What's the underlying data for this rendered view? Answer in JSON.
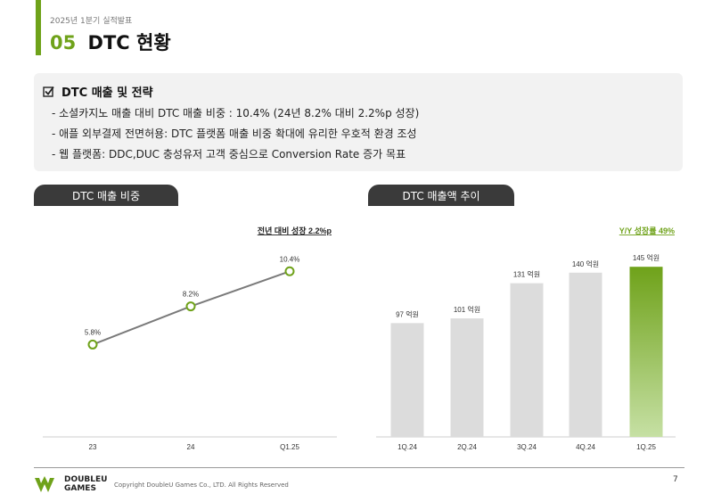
{
  "header": {
    "subtitle": "2025년 1분기 실적발표",
    "number": "05",
    "title": "DTC 현황"
  },
  "strategy": {
    "heading": "DTC 매출 및 전략",
    "bullets": [
      "- 소셜카지노 매출 대비 DTC 매출 비중 : 10.4% (24년 8.2% 대비 2.2%p 성장)",
      "- 애플 외부결제 전면허용: DTC 플랫폼 매출 비중 확대에 유리한 우호적 환경 조성",
      "- 웹 플랫폼: DDC,DUC 충성유저 고객 중심으로 Conversion Rate 증가 목표"
    ]
  },
  "chart_data": [
    {
      "type": "line",
      "title": "DTC 매출 비중",
      "annotation": "전년 대비 성장 2.2%p",
      "categories": [
        "23",
        "24",
        "Q1.25"
      ],
      "values": [
        5.8,
        8.2,
        10.4
      ],
      "data_labels": [
        "5.8%",
        "8.2%",
        "10.4%"
      ],
      "ylim": [
        0,
        14
      ],
      "grid": false,
      "colors": {
        "line": "#7a7a7a",
        "marker": "#6fa21a"
      }
    },
    {
      "type": "bar",
      "title": "DTC 매출액 추이",
      "annotation": "Y/Y 성장률 49%",
      "categories": [
        "1Q.24",
        "2Q.24",
        "3Q.24",
        "4Q.24",
        "1Q.25"
      ],
      "values": [
        97,
        101,
        131,
        140,
        145
      ],
      "data_labels": [
        "97 억원",
        "101 억원",
        "131 억원",
        "140 억원",
        "145 억원"
      ],
      "ylim": [
        0,
        190
      ],
      "grid": false,
      "colors": {
        "bar": "#dcdcdc",
        "highlight_top": "#6fa21a",
        "highlight_bottom": "#c6e0a4"
      }
    }
  ],
  "footer": {
    "logo_line1": "DOUBLEU",
    "logo_line2": "GAMES",
    "copyright": "Copyright DoubleU Games Co., LTD. All Rights Reserved",
    "page_number": "7"
  },
  "colors": {
    "accent": "#6fa21a",
    "pill": "#3a3a3a"
  }
}
